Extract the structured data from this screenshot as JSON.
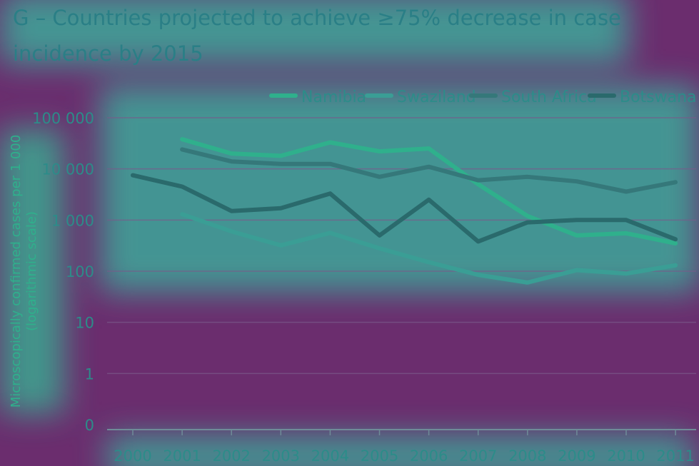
{
  "chart_data": {
    "type": "line",
    "title": "G – Countries projected to achieve ≥75% decrease in case incidence by 2015",
    "xlabel": "",
    "ylabel_line1": "Microscopically confirmed cases per 1 000",
    "ylabel_line2": "(logarithmic scale)",
    "y_scale": "log",
    "ylim": [
      0,
      100000
    ],
    "y_ticks": [
      {
        "value": 0,
        "label": "0"
      },
      {
        "value": 1,
        "label": "1"
      },
      {
        "value": 10,
        "label": "10"
      },
      {
        "value": 100,
        "label": "100"
      },
      {
        "value": 1000,
        "label": "1 000"
      },
      {
        "value": 10000,
        "label": "10 000"
      },
      {
        "value": 100000,
        "label": "100 000"
      }
    ],
    "x": [
      "2000",
      "2001",
      "2002",
      "2003",
      "2004",
      "2005",
      "2006",
      "2007",
      "2008",
      "2009",
      "2010",
      "2011"
    ],
    "grid": true,
    "legend_position": "top-right",
    "series": [
      {
        "name": "Namibia",
        "color": "#2fb08c",
        "values": [
          null,
          38000,
          20000,
          18000,
          33000,
          22000,
          25000,
          5000,
          1200,
          500,
          550,
          350
        ]
      },
      {
        "name": "Swaziland",
        "color": "#3a9e95",
        "values": [
          null,
          1300,
          600,
          320,
          560,
          280,
          150,
          85,
          60,
          105,
          90,
          130
        ]
      },
      {
        "name": "South Africa",
        "color": "#35787a",
        "values": [
          null,
          24000,
          14000,
          12500,
          12500,
          7000,
          11000,
          6000,
          7000,
          5700,
          3600,
          5500
        ]
      },
      {
        "name": "Botswana",
        "color": "#2a6a6c",
        "values": [
          7500,
          4500,
          1500,
          1700,
          3300,
          500,
          2500,
          380,
          900,
          1000,
          1000,
          420
        ]
      }
    ]
  }
}
